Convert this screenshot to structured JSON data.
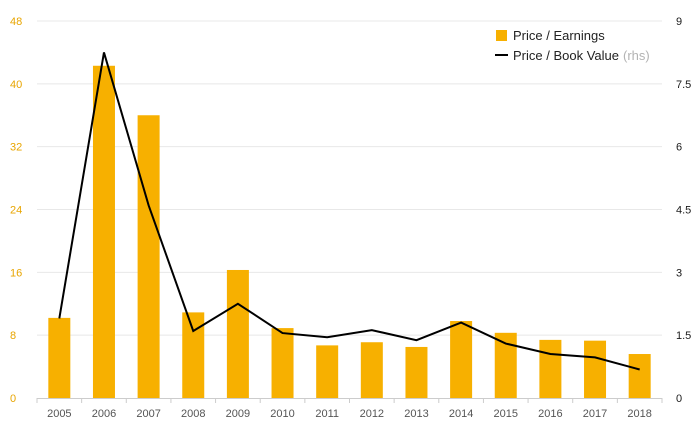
{
  "chart_data": {
    "type": "bar",
    "categories": [
      "2005",
      "2006",
      "2007",
      "2008",
      "2009",
      "2010",
      "2011",
      "2012",
      "2013",
      "2014",
      "2015",
      "2016",
      "2017",
      "2018"
    ],
    "series": [
      {
        "name": "Price / Earnings",
        "chart_type": "bar",
        "axis": "left",
        "values": [
          10.2,
          42.3,
          36.0,
          10.9,
          16.3,
          8.9,
          6.7,
          7.1,
          6.5,
          9.8,
          8.3,
          7.4,
          7.3,
          5.6
        ]
      },
      {
        "name": "Price / Book Value",
        "name_suffix": "(rhs)",
        "chart_type": "line",
        "axis": "right",
        "values": [
          1.9,
          8.25,
          4.6,
          1.6,
          2.25,
          1.55,
          1.45,
          1.62,
          1.38,
          1.8,
          1.3,
          1.05,
          0.97,
          0.68
        ]
      }
    ],
    "y_left": {
      "ticks": [
        0,
        8,
        16,
        24,
        32,
        40,
        48
      ],
      "ylim": [
        0,
        48
      ]
    },
    "y_right": {
      "ticks": [
        "0",
        "1.5",
        "3",
        "4.5",
        "6",
        "7.5",
        "9"
      ],
      "ylim": [
        0,
        9
      ]
    },
    "grid": true,
    "legend_position": "top-right",
    "colors": {
      "bar": "#f7b000",
      "line": "#000000",
      "left_tick": "#e8a500",
      "right_tick": "#1a1a1a",
      "grid": "#e8e8e8",
      "x_tick": "#555555",
      "suffix": "#b3b3b3"
    }
  }
}
